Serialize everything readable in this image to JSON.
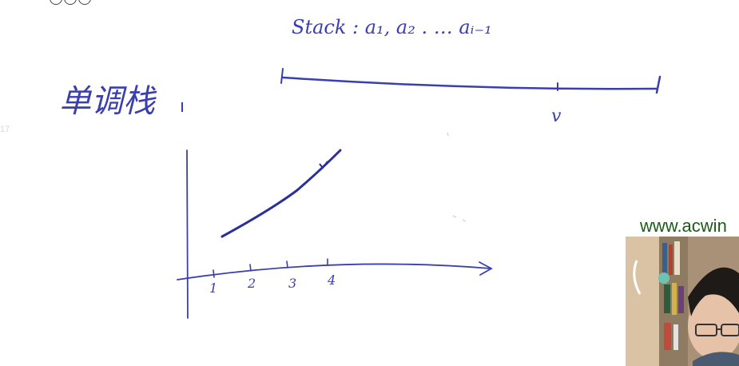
{
  "heading": "单调栈",
  "stack_label": "Stack : a₁, a₂ . … aᵢ₋₁",
  "segment_label": "v",
  "axis_ticks": [
    "1",
    "2",
    "3",
    "4"
  ],
  "watermark": "www.acwin",
  "colors": {
    "ink": "#3a3fb0",
    "watermark": "#1d5a1a"
  },
  "icons": [
    "toolbar-circles-icon",
    "webcam-feed"
  ]
}
